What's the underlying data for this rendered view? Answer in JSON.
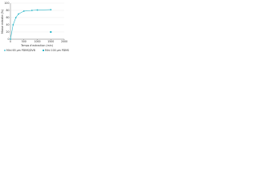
{
  "chart_data": {
    "type": "line",
    "y_label": "Masse extraite (%)",
    "x_label": "Temps d'extraction (min)",
    "x": [
      0,
      100,
      200,
      300,
      500,
      800,
      1000,
      1500
    ],
    "series": [
      {
        "name": "Mini 65 µm PDMS/DVB",
        "color": "#29b6c8",
        "marker": "circle",
        "values": [
          0,
          40,
          60,
          70,
          78,
          80,
          81,
          82
        ]
      },
      {
        "name": "Mini 100 µm PDMS",
        "color": "#29b6c8",
        "marker": "square",
        "values": [
          null,
          null,
          null,
          null,
          null,
          null,
          null,
          20
        ]
      }
    ],
    "xlim": [
      0,
      2000
    ],
    "xticks": [
      0,
      500,
      1000,
      1500,
      2000
    ],
    "ylim": [
      0,
      100
    ],
    "yticks": [
      0,
      20,
      40,
      60,
      80,
      100
    ],
    "grid": true
  }
}
